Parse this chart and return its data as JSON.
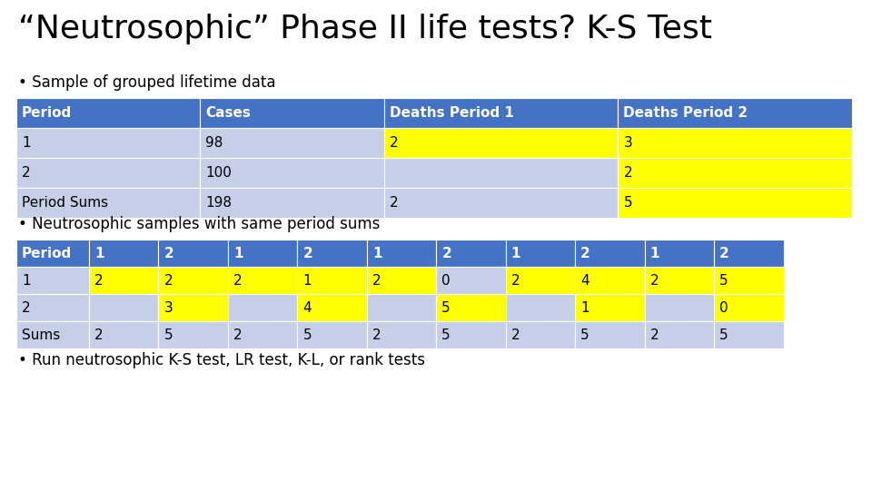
{
  "title": "“Neutrosophic” Phase II life tests? K-S Test",
  "bullet1": "• Sample of grouped lifetime data",
  "bullet2": "• Neutrosophic samples with same period sums",
  "bullet3": "• Run neutrosophic K-S test, LR test, K-L, or rank tests",
  "table1_headers": [
    "Period",
    "Cases",
    "Deaths Period 1",
    "Deaths Period 2"
  ],
  "table1_rows": [
    [
      "1",
      "98",
      "2",
      "3"
    ],
    [
      "2",
      "100",
      "",
      "2"
    ],
    [
      "Period Sums",
      "198",
      "2",
      "5"
    ]
  ],
  "table1_yellow_cells": [
    [
      0,
      2
    ],
    [
      0,
      3
    ],
    [
      1,
      3
    ],
    [
      2,
      3
    ]
  ],
  "table2_headers": [
    "Period",
    "1",
    "2",
    "1",
    "2",
    "1",
    "2",
    "1",
    "2",
    "1",
    "2"
  ],
  "table2_rows": [
    [
      "1",
      "2",
      "2",
      "2",
      "1",
      "2",
      "0",
      "2",
      "4",
      "2",
      "5"
    ],
    [
      "2",
      "",
      "3",
      "",
      "4",
      "",
      "5",
      "",
      "1",
      "",
      "0"
    ],
    [
      "Sums",
      "2",
      "5",
      "2",
      "5",
      "2",
      "5",
      "2",
      "5",
      "2",
      "5"
    ]
  ],
  "table2_yellow_cells_row0": [
    1,
    2,
    3,
    4,
    5,
    7,
    8,
    9,
    10
  ],
  "table2_yellow_cells_row1": [
    2,
    4,
    6,
    8,
    10
  ],
  "header_bg": "#4472C4",
  "header_fg": "#FFFFFF",
  "row_bg_light": "#C5D0E8",
  "yellow": "#FFFF00",
  "bg_color": "#FFFFFF",
  "title_fontsize": 26,
  "body_fontsize": 12,
  "table_fontsize": 11
}
